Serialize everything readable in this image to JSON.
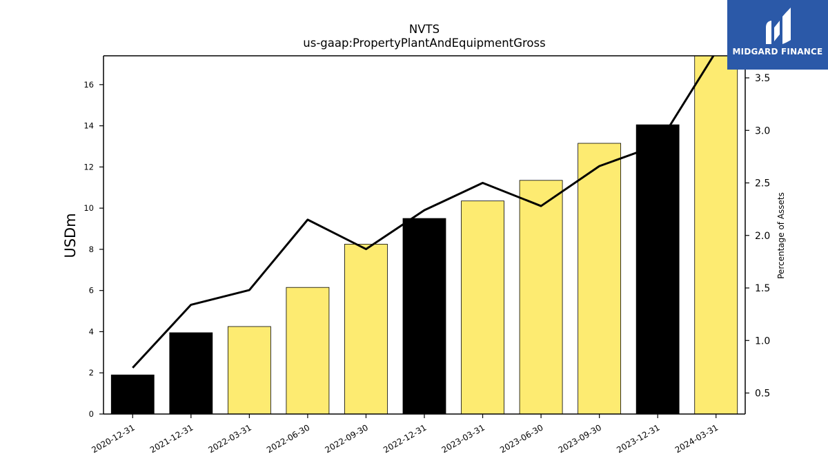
{
  "chart_data": {
    "type": "bar",
    "title": "NVTS",
    "subtitle": "us-gaap:PropertyPlantAndEquipmentGross",
    "ylabel": "USDm",
    "y2label": "Percentage of Assets",
    "categories": [
      "2020-12-31",
      "2021-12-31",
      "2022-03-31",
      "2022-06-30",
      "2022-09-30",
      "2022-12-31",
      "2023-03-31",
      "2023-06-30",
      "2023-09-30",
      "2023-12-31",
      "2024-03-31"
    ],
    "values": [
      1.9,
      3.95,
      4.25,
      6.15,
      8.25,
      9.5,
      10.35,
      11.35,
      13.15,
      14.05,
      17.6
    ],
    "bar_colors": [
      "#000000",
      "#000000",
      "#fdeb71",
      "#fdeb71",
      "#fdeb71",
      "#000000",
      "#fdeb71",
      "#fdeb71",
      "#fdeb71",
      "#000000",
      "#fdeb71"
    ],
    "line_series": {
      "values": [
        0.74,
        1.34,
        1.48,
        2.15,
        1.87,
        2.24,
        2.5,
        2.28,
        2.66,
        2.86,
        3.75
      ],
      "color": "#000000"
    },
    "ylim": [
      0,
      17.4
    ],
    "y_ticks": [
      0,
      2,
      4,
      6,
      8,
      10,
      12,
      14,
      16
    ],
    "y2lim": [
      0.3,
      3.71
    ],
    "y2_ticks": [
      0.5,
      1.0,
      1.5,
      2.0,
      2.5,
      3.0,
      3.5
    ],
    "y2_tick_labels": [
      "0.5",
      "1.0",
      "1.5",
      "2.0",
      "2.5",
      "3.0",
      "3.5"
    ],
    "grid": false
  },
  "logo": {
    "text": "MIDGARD FINANCE",
    "color": "#2b59a8"
  }
}
